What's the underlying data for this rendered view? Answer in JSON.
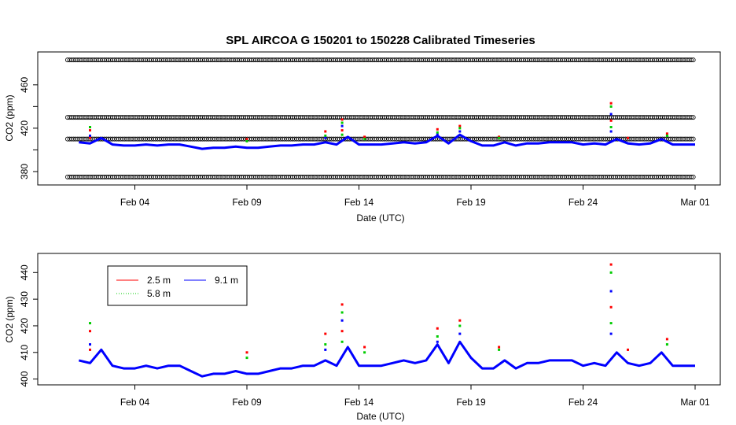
{
  "title": "SPL   AIRCOA  G    150201  to  150228   Calibrated Timeseries",
  "colors": {
    "h2_5": "#ff0000",
    "h5_8": "#00cc00",
    "h9_1": "#0000ff",
    "ref_markers": "#000000",
    "axes": "#000000"
  },
  "chart_data": [
    {
      "type": "scatter",
      "title": "SPL   AIRCOA  G    150201  to  150228   Calibrated Timeseries",
      "xlabel": "Date (UTC)",
      "ylabel": "CO2 (ppm)",
      "xlim": [
        "2015-02-01",
        "2015-03-01"
      ],
      "ylim": [
        372,
        486
      ],
      "x_ticks": [
        "Feb 04",
        "Feb 09",
        "Feb 14",
        "Feb 19",
        "Feb 24",
        "Mar 01"
      ],
      "x_tick_dates": [
        "2015-02-04",
        "2015-02-09",
        "2015-02-14",
        "2015-02-19",
        "2015-02-24",
        "2015-03-01"
      ],
      "y_ticks": [
        380,
        420,
        460
      ],
      "y_tick_labels_shown": [
        "380",
        "420",
        "460"
      ],
      "y_minor_ticks": [
        400,
        440
      ],
      "reference_levels": [
        375,
        410,
        430,
        483
      ],
      "grid": false,
      "series_ref": "shared"
    },
    {
      "type": "line",
      "title": "",
      "xlabel": "Date (UTC)",
      "ylabel": "CO2 (ppm)",
      "xlim": [
        "2015-02-01",
        "2015-03-01"
      ],
      "ylim": [
        399,
        446
      ],
      "x_ticks": [
        "Feb 04",
        "Feb 09",
        "Feb 14",
        "Feb 19",
        "Feb 24",
        "Mar 01"
      ],
      "x_tick_dates": [
        "2015-02-04",
        "2015-02-09",
        "2015-02-14",
        "2015-02-19",
        "2015-02-24",
        "2015-03-01"
      ],
      "y_ticks": [
        400,
        410,
        420,
        430,
        440
      ],
      "grid": false,
      "legend": {
        "placement": "top-left",
        "entries": [
          {
            "label": "2.5 m",
            "color": "#ff0000",
            "style": "solid"
          },
          {
            "label": "9.1 m",
            "color": "#0000ff",
            "style": "solid"
          },
          {
            "label": "5.8 m",
            "color": "#00cc00",
            "style": "dotted"
          }
        ]
      },
      "series": [
        {
          "name": "9.1 m",
          "color": "#0000ff",
          "x_dates": [
            "2015-02-01T12",
            "2015-02-02T00",
            "2015-02-02T12",
            "2015-02-03T00",
            "2015-02-03T12",
            "2015-02-04T00",
            "2015-02-04T12",
            "2015-02-05T00",
            "2015-02-05T12",
            "2015-02-06T00",
            "2015-02-06T12",
            "2015-02-07T00",
            "2015-02-07T12",
            "2015-02-08T00",
            "2015-02-08T12",
            "2015-02-09T00",
            "2015-02-09T12",
            "2015-02-10T00",
            "2015-02-10T12",
            "2015-02-11T00",
            "2015-02-11T12",
            "2015-02-12T00",
            "2015-02-12T12",
            "2015-02-13T00",
            "2015-02-13T12",
            "2015-02-14T00",
            "2015-02-14T12",
            "2015-02-15T00",
            "2015-02-15T12",
            "2015-02-16T00",
            "2015-02-16T12",
            "2015-02-17T00",
            "2015-02-17T12",
            "2015-02-18T00",
            "2015-02-18T12",
            "2015-02-19T00",
            "2015-02-19T12",
            "2015-02-20T00",
            "2015-02-20T12",
            "2015-02-21T00",
            "2015-02-21T12",
            "2015-02-22T00",
            "2015-02-22T12",
            "2015-02-23T00",
            "2015-02-23T12",
            "2015-02-24T00",
            "2015-02-24T12",
            "2015-02-25T00",
            "2015-02-25T12",
            "2015-02-26T00",
            "2015-02-26T12",
            "2015-02-27T00",
            "2015-02-27T12",
            "2015-02-28T00",
            "2015-02-28T12",
            "2015-03-01T00"
          ],
          "values": [
            407,
            406,
            411,
            405,
            404,
            404,
            405,
            404,
            405,
            405,
            403,
            401,
            402,
            402,
            403,
            402,
            402,
            403,
            404,
            404,
            405,
            405,
            407,
            405,
            412,
            405,
            405,
            405,
            406,
            407,
            406,
            407,
            413,
            406,
            414,
            408,
            404,
            404,
            407,
            404,
            406,
            406,
            407,
            407,
            407,
            405,
            406,
            405,
            410,
            406,
            405,
            406,
            410,
            405,
            405,
            405
          ]
        }
      ],
      "spikes": [
        {
          "x": "2015-02-02T00",
          "values": [
            418,
            421,
            413,
            411
          ]
        },
        {
          "x": "2015-02-09T00",
          "values": [
            410,
            408
          ]
        },
        {
          "x": "2015-02-12T12",
          "values": [
            417,
            413,
            411
          ]
        },
        {
          "x": "2015-02-13T06",
          "values": [
            428,
            425,
            422,
            418,
            414
          ]
        },
        {
          "x": "2015-02-14T06",
          "values": [
            412,
            410
          ]
        },
        {
          "x": "2015-02-17T12",
          "values": [
            419,
            416,
            414
          ]
        },
        {
          "x": "2015-02-18T12",
          "values": [
            422,
            420,
            417
          ]
        },
        {
          "x": "2015-02-20T06",
          "values": [
            412,
            411
          ]
        },
        {
          "x": "2015-02-25T06",
          "values": [
            443,
            440,
            433,
            427,
            421,
            417
          ]
        },
        {
          "x": "2015-02-26T00",
          "values": [
            411
          ]
        },
        {
          "x": "2015-02-27T18",
          "values": [
            415,
            413
          ]
        }
      ]
    }
  ]
}
